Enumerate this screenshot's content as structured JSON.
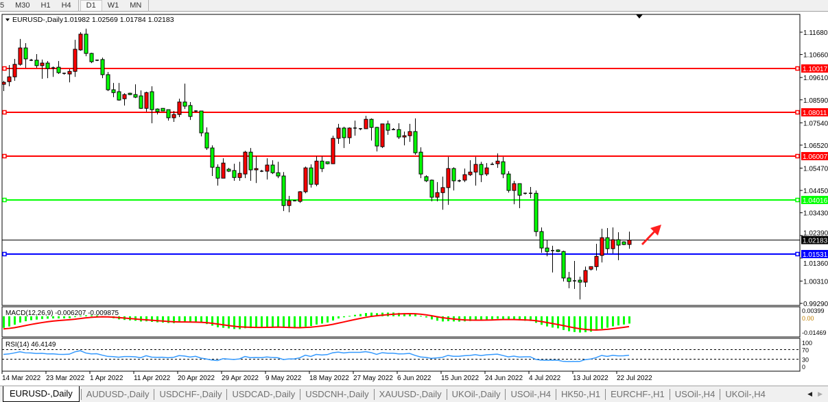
{
  "toolbar": {
    "timeframes": [
      "5",
      "M30",
      "H1",
      "H4",
      "D1",
      "W1",
      "MN"
    ],
    "active": "D1"
  },
  "chart": {
    "symbol_title": "EURUSD-,Daily",
    "ohlc": "1.01982 1.02569 1.01784 1.02183",
    "bull_color": "#ff0000",
    "bear_color": "#00ff00",
    "price_axis": [
      "1.11680",
      "1.10660",
      "1.09610",
      "1.08590",
      "1.07540",
      "1.06520",
      "1.05470",
      "1.04450",
      "1.03430",
      "1.02390",
      "1.01360",
      "1.00310",
      "0.99290"
    ],
    "levels": [
      {
        "price": "1.10017",
        "color": "#ff0000"
      },
      {
        "price": "1.08011",
        "color": "#ff0000"
      },
      {
        "price": "1.06007",
        "color": "#ff0000"
      },
      {
        "price": "1.04016",
        "color": "#00ff00"
      },
      {
        "price": "1.01531",
        "color": "#0000ff"
      }
    ],
    "current_price": "1.02183",
    "annotation_arrow_color": "#ff2020",
    "candles": [
      [
        1.093,
        1.0946,
        1.0899,
        1.0939
      ],
      [
        1.0942,
        1.1018,
        1.0921,
        1.0964
      ],
      [
        1.0964,
        1.1046,
        1.0946,
        1.1021
      ],
      [
        1.1021,
        1.1137,
        1.1015,
        1.1096
      ],
      [
        1.1096,
        1.1118,
        1.1005,
        1.1046
      ],
      [
        1.104,
        1.1046,
        1.1036,
        1.104
      ],
      [
        1.104,
        1.1068,
        1.1005,
        1.1015
      ],
      [
        1.1015,
        1.1043,
        1.0955,
        1.1027
      ],
      [
        1.1027,
        1.1036,
        1.0958,
        1.1002
      ],
      [
        1.1005,
        1.1011,
        1.0964,
        1.1005
      ],
      [
        1.1008,
        1.1036,
        1.0977,
        1.0983
      ],
      [
        1.098,
        1.0983,
        1.0974,
        1.098
      ],
      [
        1.0977,
        1.0999,
        1.0939,
        1.0989
      ],
      [
        1.0989,
        1.1133,
        1.0964,
        1.109
      ],
      [
        1.1087,
        1.1168,
        1.1083,
        1.1159
      ],
      [
        1.1159,
        1.1184,
        1.1058,
        1.1071
      ],
      [
        1.1071,
        1.1074,
        1.1027,
        1.1033
      ],
      [
        1.104,
        1.1043,
        1.1036,
        1.104
      ],
      [
        1.1043,
        1.1052,
        1.0958,
        1.0974
      ],
      [
        1.0974,
        1.0986,
        1.0899,
        1.0905
      ],
      [
        1.0905,
        1.0936,
        1.0871,
        1.0892
      ],
      [
        1.0896,
        1.0936,
        1.0855,
        1.0858
      ],
      [
        1.0864,
        1.0889,
        1.0833,
        1.0883
      ],
      [
        1.0889,
        1.0892,
        1.088,
        1.0883
      ],
      [
        1.0883,
        1.093,
        1.0867,
        1.0871
      ],
      [
        1.0877,
        1.0902,
        1.0817,
        1.082
      ],
      [
        1.082,
        1.0896,
        1.0805,
        1.0892
      ],
      [
        1.0896,
        1.0921,
        1.0752,
        1.0814
      ],
      [
        1.0817,
        1.082,
        1.0792,
        1.0805
      ],
      [
        1.082,
        1.082,
        1.0808,
        1.0808
      ],
      [
        1.0814,
        1.0814,
        1.0764,
        1.0777
      ],
      [
        1.0777,
        1.0808,
        1.0758,
        1.0792
      ],
      [
        1.0792,
        1.0864,
        1.078,
        1.0849
      ],
      [
        1.0849,
        1.0933,
        1.0817,
        1.083
      ],
      [
        1.0833,
        1.0849,
        1.0767,
        1.0783
      ],
      [
        1.0808,
        1.0811,
        1.0802,
        1.0808
      ],
      [
        1.0808,
        1.0808,
        1.0692,
        1.0708
      ],
      [
        1.0708,
        1.0733,
        1.063,
        1.0639
      ],
      [
        1.0639,
        1.0651,
        1.0511,
        1.0551
      ],
      [
        1.0551,
        1.0564,
        1.0467,
        1.0501
      ],
      [
        1.0501,
        1.0592,
        1.0501,
        1.057
      ],
      [
        1.0542,
        1.0548,
        1.0529,
        1.0533
      ],
      [
        1.0536,
        1.0567,
        1.0489,
        1.0504
      ],
      [
        1.0504,
        1.0576,
        1.0489,
        1.0523
      ],
      [
        1.052,
        1.0626,
        1.0501,
        1.062
      ],
      [
        1.062,
        1.0639,
        1.0489,
        1.0539
      ],
      [
        1.0539,
        1.0601,
        1.0479,
        1.0545
      ],
      [
        1.0533,
        1.0539,
        1.0529,
        1.0533
      ],
      [
        1.0533,
        1.0592,
        1.0495,
        1.0561
      ],
      [
        1.0561,
        1.0583,
        1.052,
        1.0526
      ],
      [
        1.0526,
        1.0576,
        1.0501,
        1.0511
      ],
      [
        1.0511,
        1.0529,
        1.0351,
        1.0376
      ],
      [
        1.0376,
        1.042,
        1.0345,
        1.0398
      ],
      [
        1.0398,
        1.0401,
        1.0395,
        1.0398
      ],
      [
        1.0395,
        1.0442,
        1.0388,
        1.0439
      ],
      [
        1.0439,
        1.0554,
        1.0432,
        1.0548
      ],
      [
        1.0548,
        1.0564,
        1.0458,
        1.0473
      ],
      [
        1.0473,
        1.0601,
        1.0464,
        1.0579
      ],
      [
        1.0579,
        1.0601,
        1.0529,
        1.0545
      ],
      [
        1.0576,
        1.0576,
        1.0564,
        1.0567
      ],
      [
        1.0567,
        1.0695,
        1.0567,
        1.0683
      ],
      [
        1.0683,
        1.0749,
        1.0658,
        1.073
      ],
      [
        1.073,
        1.0736,
        1.0639,
        1.0686
      ],
      [
        1.0686,
        1.0733,
        1.0658,
        1.073
      ],
      [
        1.073,
        1.0764,
        1.0695,
        1.073
      ],
      [
        1.0727,
        1.073,
        1.072,
        1.0727
      ],
      [
        1.0727,
        1.0786,
        1.0727,
        1.077
      ],
      [
        1.077,
        1.0774,
        1.0673,
        1.0733
      ],
      [
        1.0733,
        1.0736,
        1.0623,
        1.0648
      ],
      [
        1.0645,
        1.0749,
        1.0639,
        1.0749
      ],
      [
        1.0749,
        1.0764,
        1.0699,
        1.072
      ],
      [
        1.0723,
        1.073,
        1.072,
        1.0723
      ],
      [
        1.0723,
        1.0752,
        1.068,
        1.0689
      ],
      [
        1.0689,
        1.0714,
        1.0651,
        1.0695
      ],
      [
        1.0695,
        1.0749,
        1.0667,
        1.0714
      ],
      [
        1.0714,
        1.0774,
        1.0608,
        1.0617
      ],
      [
        1.062,
        1.0642,
        1.0501,
        1.052
      ],
      [
        1.0508,
        1.0514,
        1.0483,
        1.0489
      ],
      [
        1.0492,
        1.0495,
        1.0395,
        1.0414
      ],
      [
        1.0414,
        1.0483,
        1.0395,
        1.0435
      ],
      [
        1.0435,
        1.0508,
        1.0357,
        1.0458
      ],
      [
        1.0458,
        1.0598,
        1.0379,
        1.0545
      ],
      [
        1.0545,
        1.0551,
        1.0445,
        1.0489
      ],
      [
        1.0489,
        1.0495,
        1.0483,
        1.0489
      ],
      [
        1.0492,
        1.0545,
        1.0483,
        1.0517
      ],
      [
        1.0517,
        1.0583,
        1.0511,
        1.0529
      ],
      [
        1.0529,
        1.0598,
        1.0467,
        1.0564
      ],
      [
        1.0564,
        1.0576,
        1.0483,
        1.0517
      ],
      [
        1.052,
        1.057,
        1.0511,
        1.0548
      ],
      [
        1.0564,
        1.0573,
        1.0564,
        1.0564
      ],
      [
        1.0567,
        1.0614,
        1.0548,
        1.0579
      ],
      [
        1.0576,
        1.0598,
        1.0501,
        1.052
      ],
      [
        1.052,
        1.0533,
        1.0435,
        1.0445
      ],
      [
        1.0445,
        1.0489,
        1.0382,
        1.0476
      ],
      [
        1.0476,
        1.0476,
        1.0364,
        1.0423
      ],
      [
        1.0432,
        1.0435,
        1.0426,
        1.0432
      ],
      [
        1.0432,
        1.0461,
        1.041,
        1.0432
      ],
      [
        1.0432,
        1.0445,
        1.0235,
        1.0257
      ],
      [
        1.0257,
        1.0276,
        1.016,
        1.0182
      ],
      [
        1.0182,
        1.022,
        1.0144,
        1.0166
      ],
      [
        1.017,
        1.0192,
        1.007,
        1.017
      ],
      [
        1.0173,
        1.0176,
        1.0163,
        1.0166
      ],
      [
        1.0166,
        1.017,
        1.0029,
        1.0045
      ],
      [
        1.0045,
        1.0073,
        0.9998,
        1.0029
      ],
      [
        1.0032,
        1.0123,
        0.9995,
        1.0032
      ],
      [
        1.0035,
        1.0051,
        0.9947,
        1.0026
      ],
      [
        1.0026,
        1.0097,
        1.0004,
        1.0079
      ],
      [
        1.0085,
        1.0097,
        1.0079,
        1.0097
      ],
      [
        1.0097,
        1.0201,
        1.0079,
        1.0144
      ],
      [
        1.0148,
        1.027,
        1.0116,
        1.0229
      ],
      [
        1.0229,
        1.0273,
        1.0157,
        1.0179
      ],
      [
        1.0179,
        1.0276,
        1.0157,
        1.022
      ],
      [
        1.022,
        1.0254,
        1.0126,
        1.0195
      ],
      [
        1.021,
        1.0213,
        1.0195,
        1.0198
      ],
      [
        1.01982,
        1.02569,
        1.01784,
        1.02183
      ]
    ],
    "date_labels": [
      "14 Mar 2022",
      "23 Mar 2022",
      "1 Apr 2022",
      "11 Apr 2022",
      "20 Apr 2022",
      "29 Apr 2022",
      "9 May 2022",
      "18 May 2022",
      "27 May 2022",
      "6 Jun 2022",
      "15 Jun 2022",
      "24 Jun 2022",
      "4 Jul 2022",
      "13 Jul 2022",
      "22 Jul 2022"
    ]
  },
  "macd": {
    "label": "MACD(12,26,9) -0.006207 -0.009875",
    "axis_top": "0.00399",
    "axis_zero": "0.00",
    "axis_bottom": "-0.01469",
    "bar_color": "#00ff00",
    "signal_color": "#ff0000"
  },
  "rsi": {
    "label": "RSI(14) 46.4149",
    "axis": [
      "100",
      "70",
      "30",
      "0"
    ],
    "line_color": "#3399ff"
  },
  "tabs": [
    "EURUSD-,Daily",
    "AUDUSD-,Daily",
    "USDCHF-,Daily",
    "USDCAD-,Daily",
    "USDCNH-,Daily",
    "XAUUSD-,Daily",
    "UKOil-,Daily",
    "USOil-,H4",
    "HK50-,H1",
    "EURCHF-,H1",
    "USOil-,H4",
    "UKOil-,H4"
  ],
  "tabs_active": 0
}
